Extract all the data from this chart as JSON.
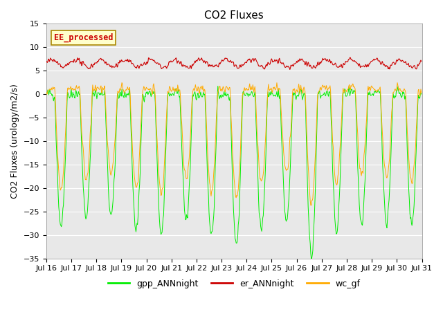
{
  "title": "CO2 Fluxes",
  "ylabel": "CO2 Fluxes (urology/m2/s)",
  "ylim": [
    -35,
    15
  ],
  "plot_bg_color": "#e8e8e8",
  "gpp_color": "#00ee00",
  "er_color": "#cc0000",
  "wc_color": "#ffaa00",
  "annotation_text": "EE_processed",
  "annotation_color": "#cc0000",
  "annotation_bg": "#ffffcc",
  "legend_labels": [
    "gpp_ANNnight",
    "er_ANNnight",
    "wc_gf"
  ],
  "title_fontsize": 11,
  "axis_fontsize": 9,
  "tick_fontsize": 8
}
